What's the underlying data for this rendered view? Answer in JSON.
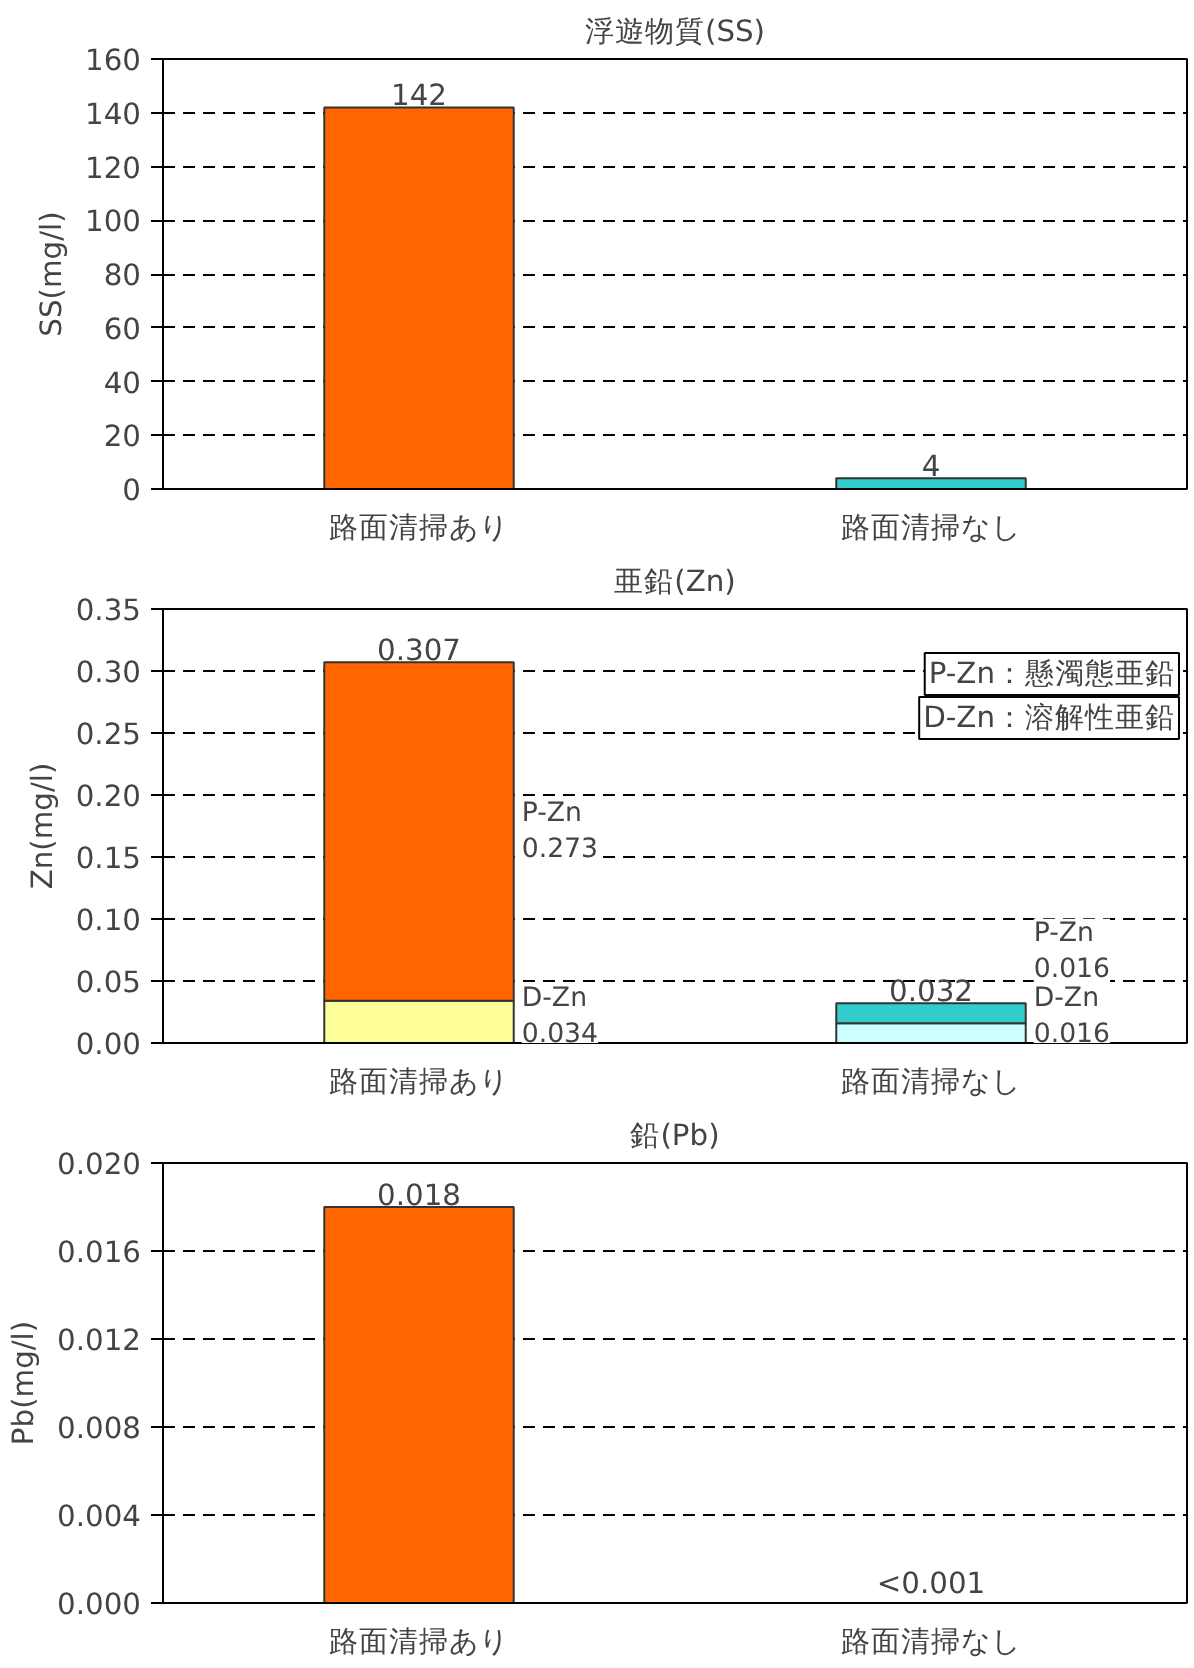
{
  "chart_data": [
    {
      "type": "bar",
      "title": "浮遊物質(SS)",
      "ylabel": "SS(mg/l)",
      "categories": [
        "路面清掃あり",
        "路面清掃なし"
      ],
      "values": [
        142,
        4
      ],
      "colors": [
        "#ff6600",
        "#33cccc"
      ],
      "ylim": [
        0,
        160
      ],
      "yticks": [
        0,
        20,
        40,
        60,
        80,
        100,
        120,
        140,
        160
      ],
      "grid": "y",
      "data_labels": true
    },
    {
      "type": "bar",
      "title": "亜鉛(Zn)",
      "ylabel": "Zn(mg/l)",
      "categories": [
        "路面清掃あり",
        "路面清掃なし"
      ],
      "stacked": true,
      "series": [
        {
          "colors": [
            "#ffff99",
            "#ccffff"
          ],
          "values": [
            0.034,
            0.016
          ]
        },
        {
          "colors": [
            "#ff6600",
            "#33cccc"
          ],
          "values": [
            0.273,
            0.016
          ]
        }
      ],
      "totals": [
        "0.307",
        "0.032"
      ],
      "ylim": [
        0,
        0.35
      ],
      "yticks": [
        {
          "value": 0,
          "label": "0.00"
        },
        {
          "value": 0.05,
          "label": "0.05"
        },
        {
          "value": 0.1,
          "label": "0.10"
        },
        {
          "value": 0.15,
          "label": "0.15"
        },
        {
          "value": 0.2,
          "label": "0.20"
        },
        {
          "value": 0.25,
          "label": "0.25"
        },
        {
          "value": 0.3,
          "label": "0.30"
        },
        {
          "value": 0.35,
          "label": "0.35"
        }
      ],
      "grid": "y",
      "annotations": [
        "P-Zn：懸濁態亜鉛",
        "D-Zn：溶解性亜鉛",
        "D-Zn\n0.034",
        "P-Zn\n0.273",
        "D-Zn\n0.016",
        "P-Zn\n0.016"
      ]
    },
    {
      "type": "bar",
      "title": "鉛(Pb)",
      "ylabel": "Pb(mg/l)",
      "categories": [
        "路面清掃あり",
        "路面清掃なし"
      ],
      "values": [
        0.018,
        null
      ],
      "value_labels": [
        "0.018",
        "<0.001"
      ],
      "color": "#ff6600",
      "ylim": [
        0,
        0.02
      ],
      "yticks": [
        {
          "value": 0,
          "label": "0.000"
        },
        {
          "value": 0.004,
          "label": "0.004"
        },
        {
          "value": 0.008,
          "label": "0.008"
        },
        {
          "value": 0.012,
          "label": "0.012"
        },
        {
          "value": 0.016,
          "label": "0.016"
        },
        {
          "value": 0.02,
          "label": "0.020"
        }
      ],
      "grid": "y"
    }
  ]
}
